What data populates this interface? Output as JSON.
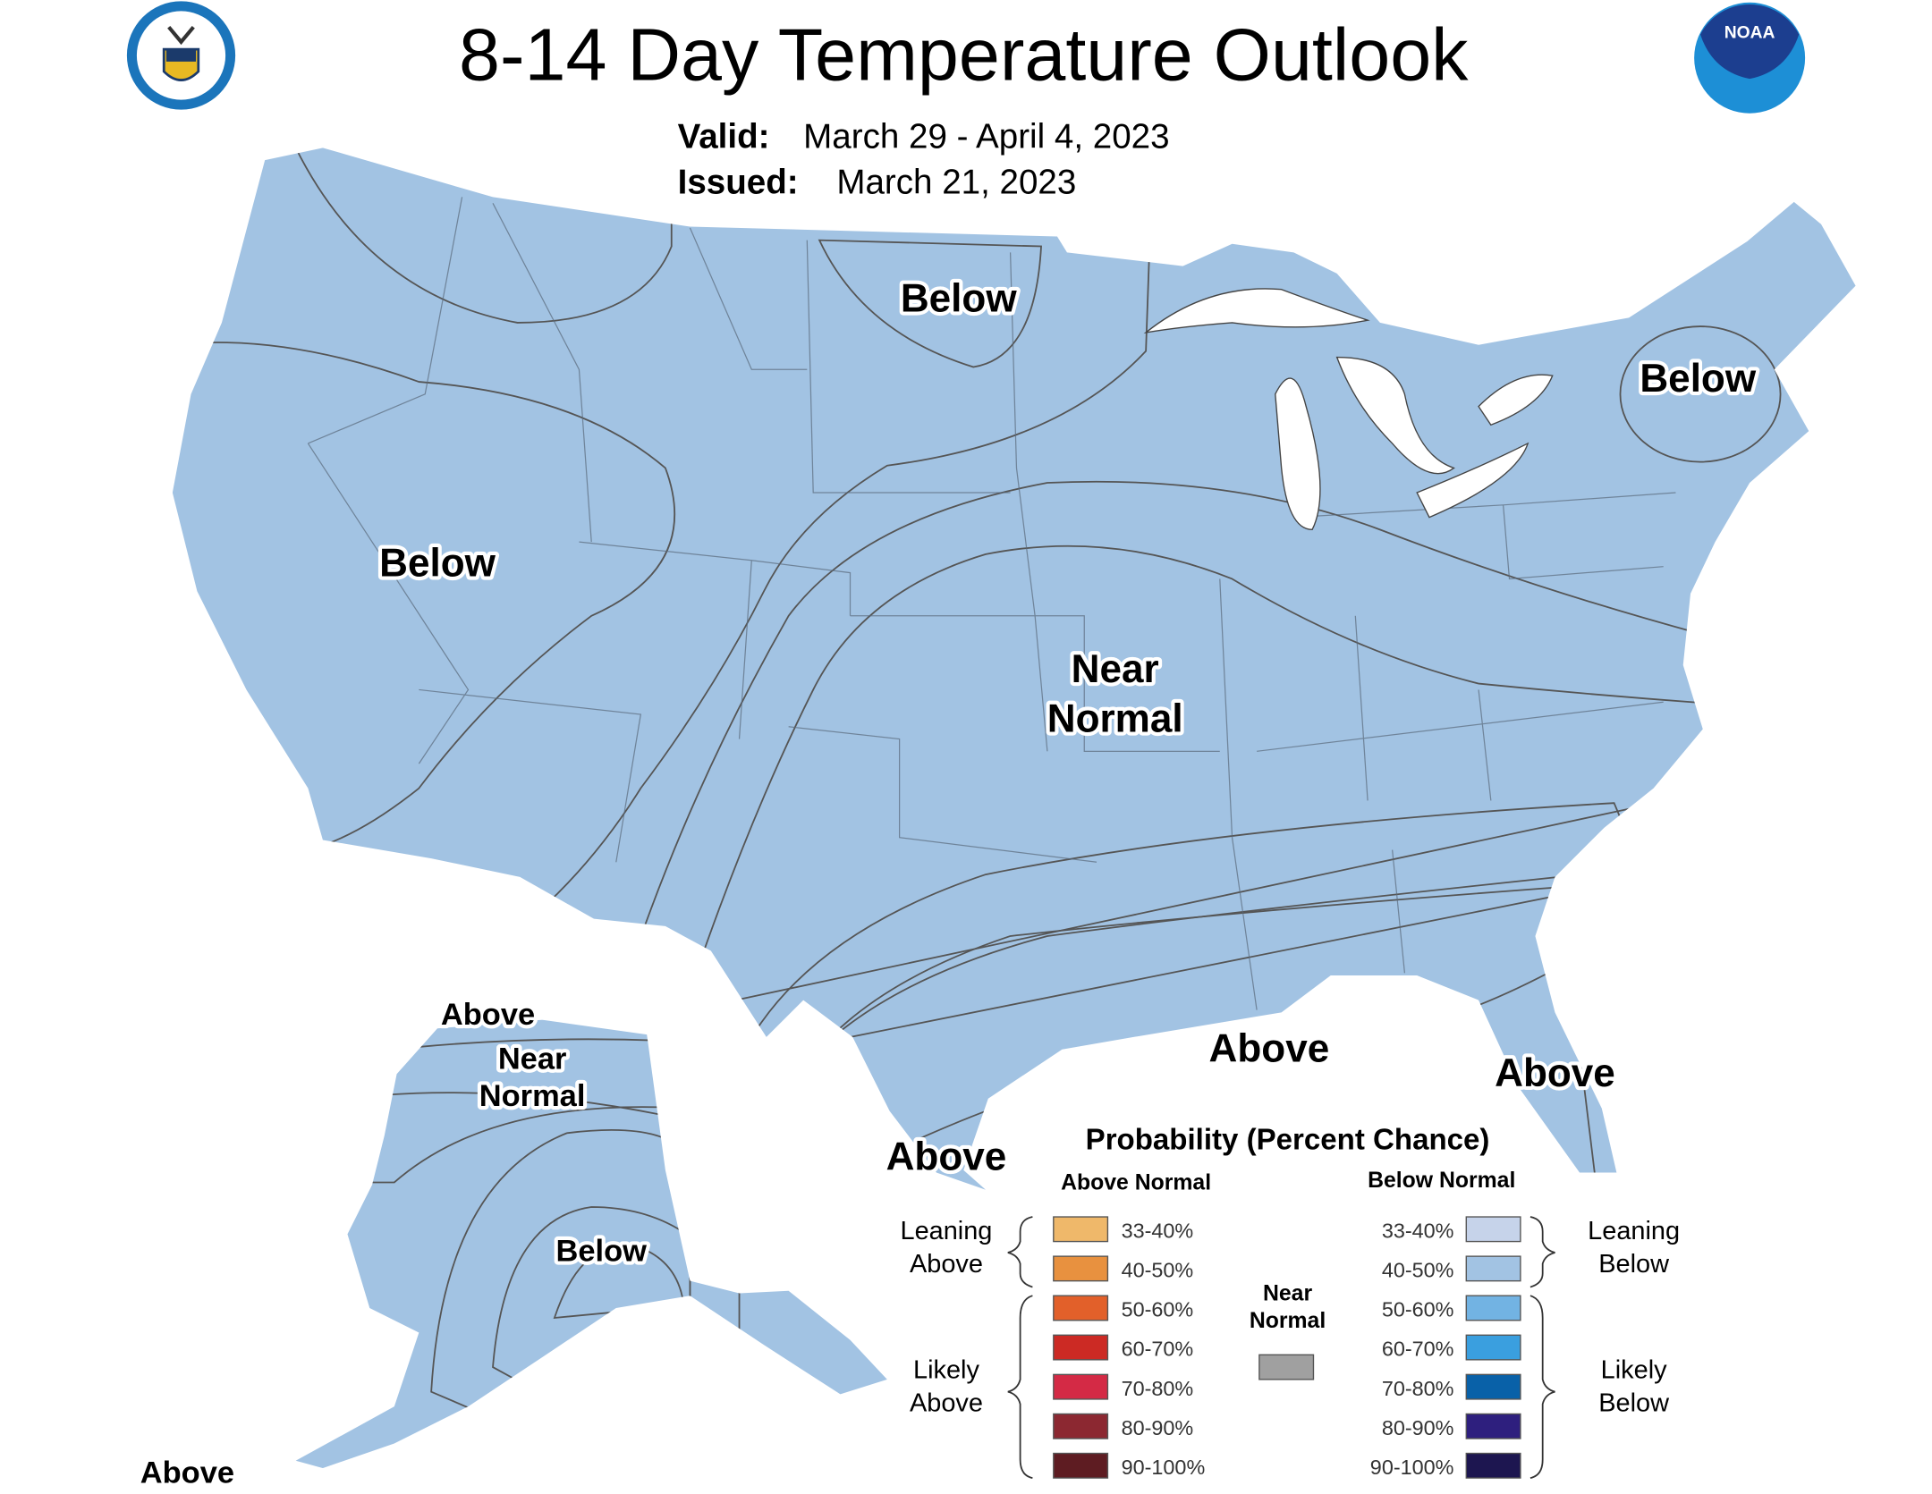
{
  "header": {
    "title": "8-14 Day Temperature Outlook",
    "valid_label": "Valid:",
    "valid_value": "March 29 - April 4, 2023",
    "issued_label": "Issued:",
    "issued_value": "March 21, 2023",
    "left_logo": "department-of-commerce-seal",
    "right_logo": "noaa-logo",
    "right_logo_text": "NOAA"
  },
  "map_labels": {
    "west_below": "Below",
    "dakota_below": "Below",
    "northeast_below": "Below",
    "near_normal_1": "Near",
    "near_normal_2": "Normal",
    "gulf_above": "Above",
    "florida_above": "Above",
    "texas_above": "Above",
    "ak_above_north": "Above",
    "ak_near_1": "Near",
    "ak_near_2": "Normal",
    "ak_below": "Below",
    "ak_above_south": "Above"
  },
  "legend": {
    "title": "Probability (Percent Chance)",
    "above_header": "Above Normal",
    "below_header": "Below Normal",
    "near_normal_1": "Near",
    "near_normal_2": "Normal",
    "near_normal_color": "#a0a0a0",
    "leaning_above_1": "Leaning",
    "leaning_above_2": "Above",
    "likely_above_1": "Likely",
    "likely_above_2": "Above",
    "leaning_below_1": "Leaning",
    "leaning_below_2": "Below",
    "likely_below_1": "Likely",
    "likely_below_2": "Below",
    "above": [
      {
        "range": "33-40%",
        "color": "#efb86a"
      },
      {
        "range": "40-50%",
        "color": "#e8913f"
      },
      {
        "range": "50-60%",
        "color": "#e2602a"
      },
      {
        "range": "60-70%",
        "color": "#cc2a24"
      },
      {
        "range": "70-80%",
        "color": "#d42a45"
      },
      {
        "range": "80-90%",
        "color": "#8c2831"
      },
      {
        "range": "90-100%",
        "color": "#5e1c22"
      }
    ],
    "below": [
      {
        "range": "33-40%",
        "color": "#c6d3ea"
      },
      {
        "range": "40-50%",
        "color": "#a2c3e3"
      },
      {
        "range": "50-60%",
        "color": "#72b3e3"
      },
      {
        "range": "60-70%",
        "color": "#3a9fdf"
      },
      {
        "range": "70-80%",
        "color": "#0961a8"
      },
      {
        "range": "80-90%",
        "color": "#2e1f7e"
      },
      {
        "range": "90-100%",
        "color": "#1d1650"
      }
    ]
  }
}
